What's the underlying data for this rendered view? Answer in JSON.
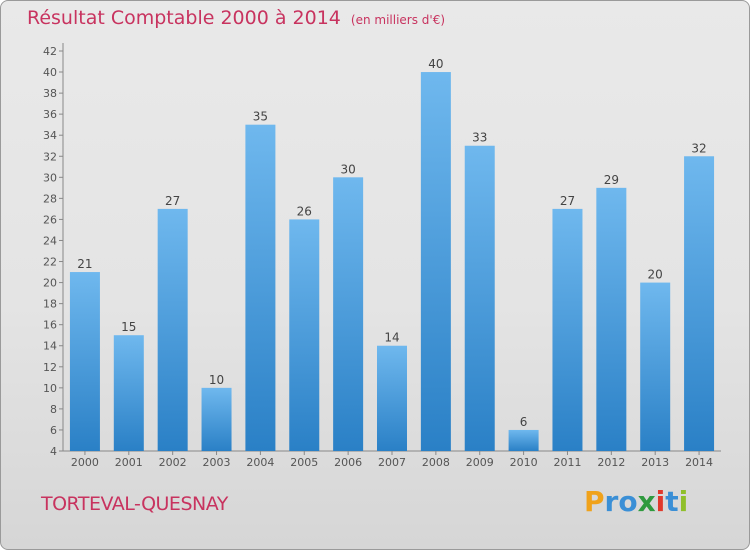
{
  "header": {
    "title": "Résultat Comptable 2000 à 2014",
    "unit": "(en milliers d'€)"
  },
  "footer": {
    "commune": "TORTEVAL-QUESNAY"
  },
  "logo": {
    "letters": [
      "P",
      "r",
      "o",
      "x",
      "i",
      "t",
      "i"
    ],
    "colors": [
      "#f0a21b",
      "#3a8fd6",
      "#3a8fd6",
      "#2f9a3e",
      "#e0392b",
      "#3a8fd6",
      "#8fbf2a"
    ]
  },
  "colors": {
    "bar_light": "#6fb8ee",
    "bar_dark": "#2a80c6",
    "title": "#c8335f",
    "axis": "#666666"
  },
  "chart_data": {
    "type": "bar",
    "title": "Résultat Comptable 2000 à 2014",
    "ylabel": "(en milliers d'€)",
    "categories": [
      "2000",
      "2001",
      "2002",
      "2003",
      "2004",
      "2005",
      "2006",
      "2007",
      "2008",
      "2009",
      "2010",
      "2011",
      "2012",
      "2013",
      "2014"
    ],
    "values": [
      21,
      15,
      27,
      10,
      35,
      26,
      30,
      14,
      40,
      33,
      6,
      27,
      29,
      20,
      32
    ],
    "ylim": [
      4,
      42
    ],
    "yticks": [
      4,
      6,
      8,
      10,
      12,
      14,
      16,
      18,
      20,
      22,
      24,
      26,
      28,
      30,
      32,
      34,
      36,
      38,
      40,
      42
    ],
    "grid": false,
    "data_labels": true
  }
}
